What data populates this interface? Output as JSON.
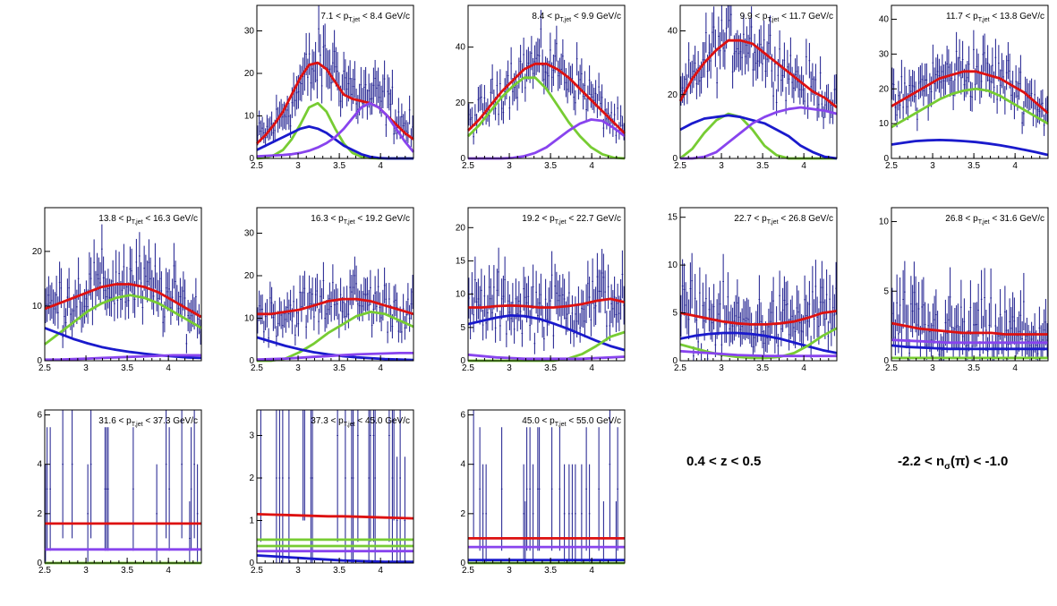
{
  "chart_data": {
    "type": "scatter",
    "x_range": [
      2.5,
      4.4
    ],
    "x_ticks": [
      2.5,
      3,
      3.5,
      4
    ],
    "series_colors": {
      "data": "#1a1a8c",
      "total_fit": "#dd1111",
      "component_green": "#77cc33",
      "component_blue": "#1a1acc",
      "component_purple": "#8844ee"
    },
    "info_z": "0.4 < z < 0.5",
    "info_nsigma": "-2.2 < n",
    "info_nsigma_sub": "σ",
    "info_nsigma_tail": "(π) < -1.0",
    "panels": [
      {
        "label_lo": "7.1",
        "label_hi": "8.4 GeV/c",
        "ymax": 36,
        "y_ticks": [
          0,
          10,
          20,
          30
        ],
        "mean": [
          5,
          6,
          8,
          11,
          14,
          18,
          21,
          22.5,
          22,
          20,
          17,
          15,
          14.5,
          14.3,
          13.5,
          11,
          8,
          6
        ]
      },
      {
        "label_lo": "8.4",
        "label_hi": "9.9 GeV/c",
        "ymax": 55,
        "y_ticks": [
          20,
          40
        ],
        "mean": [
          12,
          16,
          20,
          25,
          29,
          32,
          34,
          34,
          33,
          30,
          27,
          22,
          18,
          13,
          9
        ]
      },
      {
        "label_lo": "9.9",
        "label_hi": "11.7 GeV/c",
        "ymax": 48,
        "y_ticks": [
          20,
          40
        ],
        "mean": [
          18,
          25,
          30,
          35,
          37,
          37,
          36,
          33,
          30,
          27,
          24,
          22,
          20,
          18
        ]
      },
      {
        "label_lo": "11.7",
        "label_hi": "13.8 GeV/c",
        "ymax": 44,
        "y_ticks": [
          10,
          20,
          30,
          40
        ],
        "mean": [
          15,
          17,
          19,
          21,
          23,
          24,
          25,
          25,
          24,
          23,
          21,
          19,
          16,
          13
        ]
      },
      {
        "label_lo": "13.8",
        "label_hi": "16.3 GeV/c",
        "ymax": 28,
        "y_ticks": [
          10,
          20
        ],
        "mean": [
          9.5,
          10.5,
          11.5,
          12.5,
          13.5,
          14,
          14,
          13.5,
          12.5,
          11,
          9.5,
          8
        ]
      },
      {
        "label_lo": "16.3",
        "label_hi": "19.2 GeV/c",
        "ymax": 36,
        "y_ticks": [
          10,
          20,
          30
        ],
        "mean": [
          11,
          11,
          11.5,
          12,
          13,
          14,
          14.5,
          14.5,
          14,
          13,
          12,
          11
        ]
      },
      {
        "label_lo": "19.2",
        "label_hi": "22.7 GeV/c",
        "ymax": 23,
        "y_ticks": [
          5,
          10,
          15,
          20
        ],
        "mean": [
          8,
          8,
          8.2,
          8.3,
          8.2,
          8,
          8,
          8.2,
          8.5,
          9,
          9.5,
          9
        ]
      },
      {
        "label_lo": "22.7",
        "label_hi": "26.8 GeV/c",
        "ymax": 16,
        "y_ticks": [
          5,
          10,
          15
        ],
        "mean": [
          5,
          4.7,
          4.4,
          4.1,
          3.9,
          3.8,
          3.8,
          3.9,
          4.1,
          4.5,
          5,
          5.2
        ]
      },
      {
        "label_lo": "26.8",
        "label_hi": "31.6 GeV/c",
        "ymax": 11,
        "y_ticks": [
          5,
          10
        ],
        "mean": [
          2.7,
          2.5,
          2.3,
          2.2,
          2.1,
          2,
          2,
          2,
          1.9,
          1.9,
          1.9,
          1.9
        ]
      },
      {
        "label_lo": "31.6",
        "label_hi": "37.3 GeV/c",
        "ymax": 6.2,
        "y_ticks": [
          2,
          4,
          6
        ],
        "mean": [
          1.6,
          1.6,
          1.6,
          1.6,
          1.6,
          1.6,
          1.6,
          1.6,
          1.6,
          1.6,
          1.6,
          1.6
        ]
      },
      {
        "label_lo": "37.3",
        "label_hi": "45.0 GeV/c",
        "ymax": 3.6,
        "y_ticks": [
          1,
          2,
          3
        ],
        "mean": [
          1.15,
          1.14,
          1.13,
          1.12,
          1.11,
          1.1,
          1.1,
          1.09,
          1.08,
          1.07,
          1.06,
          1.05
        ]
      },
      {
        "label_lo": "45.0",
        "label_hi": "55.0 GeV/c",
        "ymax": 6.2,
        "y_ticks": [
          2,
          4,
          6
        ],
        "mean": [
          1,
          1,
          1,
          1,
          1,
          1,
          1,
          1,
          1,
          1,
          1,
          1
        ]
      }
    ],
    "fit_curves": [
      {
        "panel": 0,
        "series": "total_fit",
        "y": [
          3.5,
          5.5,
          8,
          11,
          15,
          19,
          22,
          22.5,
          21,
          18,
          15,
          14,
          13.5,
          13,
          12,
          10,
          8,
          6,
          4.5
        ]
      },
      {
        "panel": 0,
        "series": "component_green",
        "y": [
          0,
          0.2,
          0.8,
          2,
          4.5,
          8,
          12,
          13,
          11,
          7,
          3.5,
          1.3,
          0.4,
          0.1,
          0,
          0,
          0,
          0,
          0
        ]
      },
      {
        "panel": 0,
        "series": "component_blue",
        "y": [
          2,
          3,
          4,
          5,
          6,
          7,
          7.5,
          7,
          6,
          4.5,
          3,
          2,
          1,
          0.4,
          0.1,
          0,
          0,
          0,
          0
        ]
      },
      {
        "panel": 0,
        "series": "component_purple",
        "y": [
          0.5,
          0.6,
          0.7,
          0.8,
          1,
          1.3,
          1.8,
          2.6,
          3.6,
          5,
          7,
          9.5,
          12,
          13,
          12,
          10,
          7,
          4,
          1.5
        ]
      },
      {
        "panel": 1,
        "series": "total_fit",
        "y": [
          10,
          14,
          19,
          24,
          28,
          32,
          34,
          34,
          32,
          29,
          25,
          21,
          17,
          13,
          9
        ]
      },
      {
        "panel": 1,
        "series": "component_green",
        "y": [
          8,
          12,
          17,
          22,
          26,
          29,
          29,
          25,
          19,
          13,
          8,
          4,
          1.5,
          0.3,
          0
        ]
      },
      {
        "panel": 1,
        "series": "component_purple",
        "y": [
          0,
          0,
          0,
          0,
          0.2,
          0.8,
          2,
          4,
          7,
          10,
          12.5,
          14,
          13.5,
          11,
          8
        ]
      },
      {
        "panel": 2,
        "series": "total_fit",
        "y": [
          18,
          25,
          30,
          34,
          37,
          37,
          36,
          33,
          30,
          27,
          24,
          21,
          19,
          16
        ]
      },
      {
        "panel": 2,
        "series": "component_green",
        "y": [
          0,
          3,
          8,
          12,
          14,
          13,
          9,
          4,
          1,
          0,
          0,
          0,
          0,
          0
        ]
      },
      {
        "panel": 2,
        "series": "component_blue",
        "y": [
          9,
          11,
          12.5,
          13,
          13.5,
          13,
          12,
          11,
          9,
          7,
          4,
          2,
          0.5,
          0
        ]
      },
      {
        "panel": 2,
        "series": "component_purple",
        "y": [
          0,
          0,
          0.5,
          2,
          5,
          8,
          11,
          13,
          14.5,
          15.5,
          16,
          15.5,
          15,
          14
        ]
      },
      {
        "panel": 3,
        "series": "total_fit",
        "y": [
          15,
          17,
          19,
          21,
          23,
          24,
          25,
          25,
          24,
          23,
          21,
          19,
          16,
          13
        ]
      },
      {
        "panel": 3,
        "series": "component_green",
        "y": [
          9,
          11,
          13,
          15,
          17,
          18.5,
          19.5,
          20,
          19.5,
          18,
          16,
          14,
          12,
          10
        ]
      },
      {
        "panel": 3,
        "series": "component_blue",
        "y": [
          4,
          4.5,
          5,
          5.2,
          5.3,
          5.2,
          5,
          4.7,
          4.3,
          3.8,
          3.2,
          2.5,
          1.8,
          1
        ]
      },
      {
        "panel": 4,
        "series": "total_fit",
        "y": [
          9.5,
          10.5,
          11.5,
          12.5,
          13.5,
          14,
          14,
          13.5,
          12.5,
          11,
          9.5,
          8
        ]
      },
      {
        "panel": 4,
        "series": "component_green",
        "y": [
          3,
          5,
          7,
          9,
          10.5,
          11.5,
          12,
          11.5,
          10.5,
          9,
          7.5,
          6
        ]
      },
      {
        "panel": 4,
        "series": "component_blue",
        "y": [
          6,
          5,
          4,
          3.2,
          2.5,
          2,
          1.6,
          1.3,
          1,
          0.8,
          0.6,
          0.5
        ]
      },
      {
        "panel": 4,
        "series": "component_purple",
        "y": [
          0.2,
          0.2,
          0.3,
          0.4,
          0.5,
          0.6,
          0.7,
          0.8,
          0.9,
          1,
          1,
          1
        ]
      },
      {
        "panel": 5,
        "series": "total_fit",
        "y": [
          11,
          11,
          11.5,
          12,
          13,
          14,
          14.5,
          14.5,
          14,
          13,
          12,
          11
        ]
      },
      {
        "panel": 5,
        "series": "component_green",
        "y": [
          0,
          0,
          0.5,
          2,
          4,
          6.5,
          8.5,
          10.5,
          11.5,
          11,
          9.5,
          8
        ]
      },
      {
        "panel": 5,
        "series": "component_blue",
        "y": [
          5.5,
          4.5,
          3.5,
          2.7,
          2,
          1.5,
          1.1,
          0.8,
          0.6,
          0.4,
          0.3,
          0.2
        ]
      },
      {
        "panel": 5,
        "series": "component_purple",
        "y": [
          0.3,
          0.4,
          0.5,
          0.7,
          0.9,
          1.1,
          1.3,
          1.5,
          1.6,
          1.7,
          1.8,
          1.8
        ]
      },
      {
        "panel": 6,
        "series": "total_fit",
        "y": [
          8,
          8,
          8.2,
          8.3,
          8.2,
          8,
          8,
          8.2,
          8.5,
          9,
          9.3,
          8.8
        ]
      },
      {
        "panel": 6,
        "series": "component_blue",
        "y": [
          5.5,
          6,
          6.5,
          6.8,
          6.7,
          6.3,
          5.6,
          4.8,
          3.9,
          3,
          2.2,
          1.6
        ]
      },
      {
        "panel": 6,
        "series": "component_green",
        "y": [
          0,
          0,
          0,
          0,
          0,
          0,
          0,
          0.3,
          1,
          2.2,
          3.6,
          4.3
        ]
      },
      {
        "panel": 6,
        "series": "component_purple",
        "y": [
          0.9,
          0.7,
          0.5,
          0.4,
          0.3,
          0.3,
          0.3,
          0.3,
          0.3,
          0.4,
          0.5,
          0.6
        ]
      },
      {
        "panel": 7,
        "series": "total_fit",
        "y": [
          5,
          4.7,
          4.4,
          4.1,
          3.9,
          3.8,
          3.8,
          3.9,
          4.1,
          4.5,
          5,
          5.2
        ]
      },
      {
        "panel": 7,
        "series": "component_blue",
        "y": [
          2.3,
          2.6,
          2.8,
          2.9,
          2.9,
          2.8,
          2.6,
          2.3,
          1.9,
          1.5,
          1.1,
          0.8
        ]
      },
      {
        "panel": 7,
        "series": "component_green",
        "y": [
          1.7,
          1.3,
          0.9,
          0.6,
          0.4,
          0.3,
          0.3,
          0.4,
          0.8,
          1.6,
          2.6,
          3.4
        ]
      },
      {
        "panel": 7,
        "series": "component_purple",
        "y": [
          1,
          0.9,
          0.8,
          0.7,
          0.6,
          0.55,
          0.5,
          0.5,
          0.5,
          0.5,
          0.5,
          0.5
        ]
      },
      {
        "panel": 8,
        "series": "total_fit",
        "y": [
          2.7,
          2.5,
          2.3,
          2.2,
          2.1,
          2,
          2,
          2,
          1.9,
          1.9,
          1.9,
          1.9
        ]
      },
      {
        "panel": 8,
        "series": "component_purple",
        "y": [
          1.5,
          1.45,
          1.4,
          1.35,
          1.3,
          1.3,
          1.3,
          1.3,
          1.3,
          1.3,
          1.3,
          1.3
        ]
      },
      {
        "panel": 8,
        "series": "component_blue",
        "y": [
          1.1,
          1,
          0.95,
          0.9,
          0.85,
          0.85,
          0.85,
          0.85,
          0.85,
          0.85,
          0.85,
          0.85
        ]
      },
      {
        "panel": 8,
        "series": "component_green",
        "y": [
          0.2,
          0.2,
          0.2,
          0.2,
          0.2,
          0.2,
          0.2,
          0.2,
          0.2,
          0.2,
          0.2,
          0.2
        ]
      },
      {
        "panel": 9,
        "series": "total_fit",
        "y": [
          1.6,
          1.6,
          1.6,
          1.6,
          1.6,
          1.6,
          1.6,
          1.6,
          1.6,
          1.6,
          1.6,
          1.6
        ]
      },
      {
        "panel": 9,
        "series": "component_purple",
        "y": [
          0.55,
          0.55,
          0.55,
          0.55,
          0.55,
          0.55,
          0.55,
          0.55,
          0.55,
          0.55,
          0.55,
          0.55
        ]
      },
      {
        "panel": 9,
        "series": "component_green",
        "y": [
          0,
          0,
          0,
          0,
          0,
          0,
          0,
          0,
          0,
          0,
          0,
          0
        ]
      },
      {
        "panel": 10,
        "series": "total_fit",
        "y": [
          1.15,
          1.14,
          1.13,
          1.12,
          1.11,
          1.1,
          1.1,
          1.09,
          1.08,
          1.07,
          1.06,
          1.05
        ]
      },
      {
        "panel": 10,
        "series": "component_green",
        "y": [
          0.55,
          0.55,
          0.55,
          0.55,
          0.55,
          0.55,
          0.55,
          0.55,
          0.55,
          0.55,
          0.55,
          0.55
        ]
      },
      {
        "panel": 10,
        "series": "component_green",
        "y": [
          0.4,
          0.4,
          0.4,
          0.4,
          0.4,
          0.4,
          0.4,
          0.4,
          0.4,
          0.4,
          0.4,
          0.4
        ]
      },
      {
        "panel": 10,
        "series": "component_purple",
        "y": [
          0.28,
          0.28,
          0.28,
          0.28,
          0.28,
          0.28,
          0.28,
          0.28,
          0.28,
          0.28,
          0.28,
          0.28
        ]
      },
      {
        "panel": 10,
        "series": "component_blue",
        "y": [
          0.18,
          0.16,
          0.14,
          0.12,
          0.1,
          0.08,
          0.06,
          0.05,
          0.04,
          0.03,
          0.03,
          0.03
        ]
      },
      {
        "panel": 11,
        "series": "total_fit",
        "y": [
          1,
          1,
          1,
          1,
          1,
          1,
          1,
          1,
          1,
          1,
          1,
          1
        ]
      },
      {
        "panel": 11,
        "series": "component_purple",
        "y": [
          0.65,
          0.65,
          0.65,
          0.65,
          0.65,
          0.65,
          0.65,
          0.65,
          0.65,
          0.65,
          0.65,
          0.65
        ]
      },
      {
        "panel": 11,
        "series": "component_blue",
        "y": [
          0.12,
          0.12,
          0.12,
          0.12,
          0.12,
          0.12,
          0.12,
          0.12,
          0.12,
          0.12,
          0.12,
          0.12
        ]
      },
      {
        "panel": 11,
        "series": "component_green",
        "y": [
          0,
          0,
          0,
          0,
          0,
          0,
          0,
          0,
          0,
          0,
          0,
          0
        ]
      }
    ]
  }
}
